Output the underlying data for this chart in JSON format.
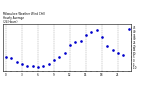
{
  "title": "Milwaukee Weather Wind Chill\nHourly Average\n(24 Hours)",
  "hours": [
    0,
    1,
    2,
    3,
    4,
    5,
    6,
    7,
    8,
    9,
    10,
    11,
    12,
    13,
    14,
    15,
    16,
    17,
    18,
    19,
    20,
    21,
    22,
    23
  ],
  "wind_chill": [
    5,
    3,
    -2,
    -5,
    -7,
    -8,
    -9,
    -8,
    -5,
    0,
    5,
    10,
    22,
    25,
    27,
    35,
    40,
    42,
    32,
    20,
    15,
    10,
    7,
    44
  ],
  "dot_color": "#0000cc",
  "bg_color": "#ffffff",
  "grid_color": "#999999",
  "title_color": "#000000",
  "tick_label_color": "#000000",
  "ylim": [
    -15,
    50
  ],
  "xlim": [
    -0.5,
    23.5
  ],
  "title_fontsize": 2.0,
  "tick_fontsize": 2.0,
  "dot_size": 0.8,
  "grid_positions": [
    0,
    3,
    6,
    9,
    12,
    15,
    18,
    21
  ],
  "yticks": [
    45,
    40,
    35,
    30,
    25,
    20,
    15,
    10,
    5,
    0,
    -5,
    -10
  ],
  "xtick_step": 3
}
